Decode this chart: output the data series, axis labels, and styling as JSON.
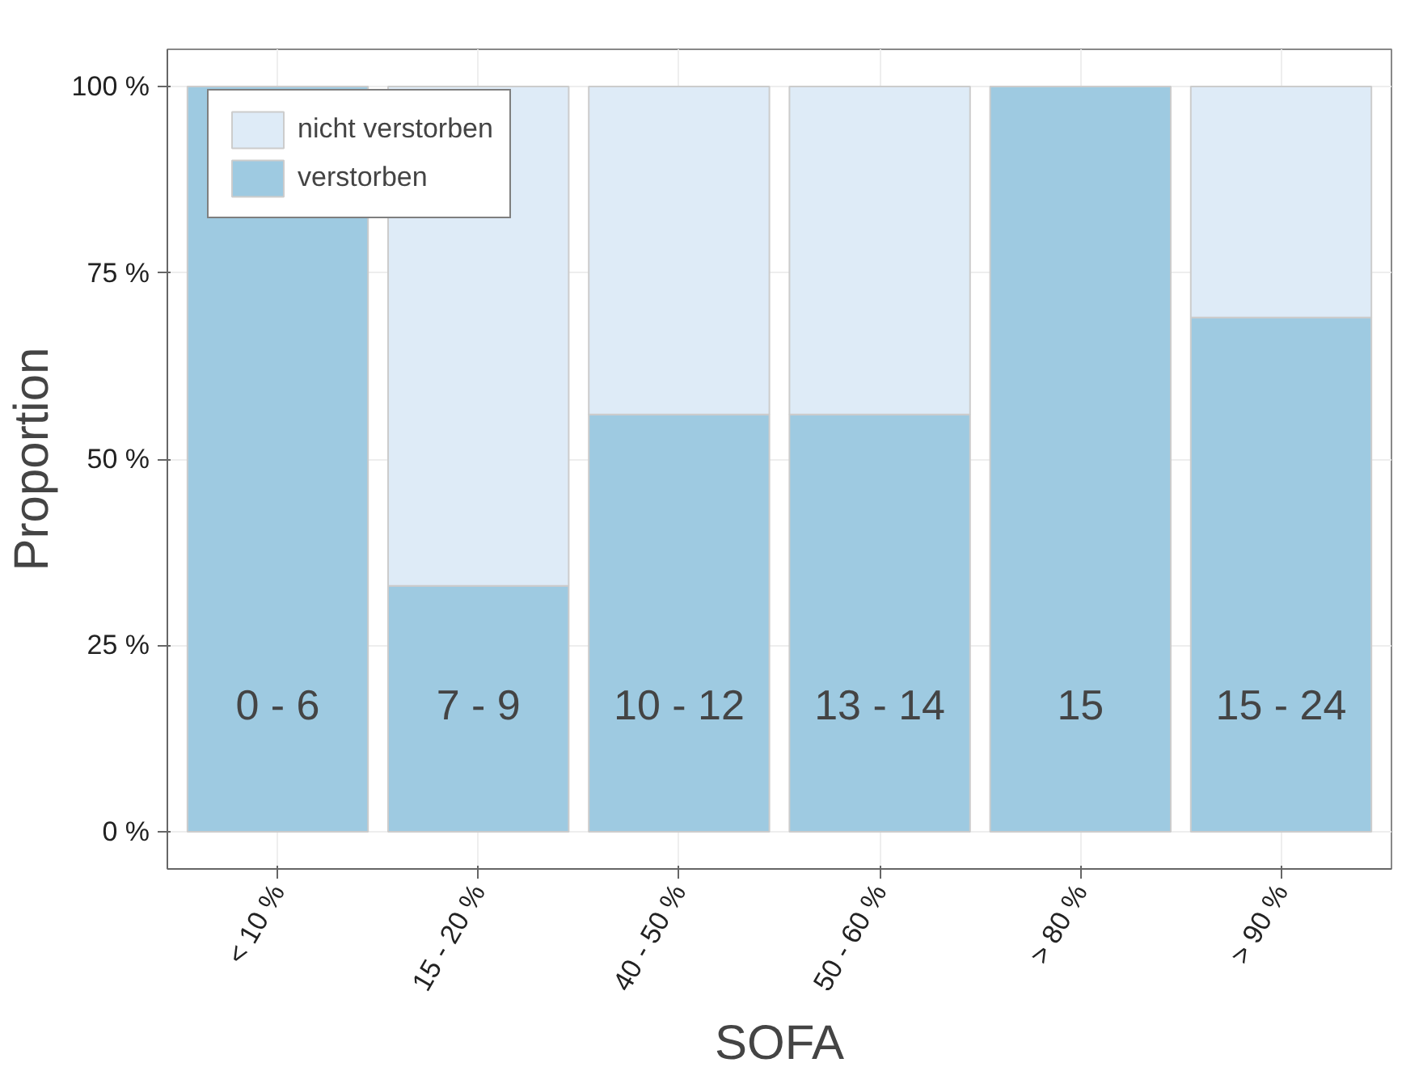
{
  "chart_data": {
    "type": "bar",
    "stacked": true,
    "xlabel": "SOFA",
    "ylabel": "Proportion",
    "categories": [
      "< 10 %",
      "15 - 20 %",
      "40 - 50 %",
      "50 - 60 %",
      "> 80 %",
      "> 90 %"
    ],
    "series": [
      {
        "name": "verstorben",
        "color": "#9ecae1",
        "values": [
          100,
          33,
          56,
          56,
          100,
          69
        ]
      },
      {
        "name": "nicht verstorben",
        "color": "#deebf7",
        "values": [
          null,
          67,
          44,
          44,
          null,
          31
        ]
      }
    ],
    "ylim": [
      -5,
      105
    ],
    "yticks": [
      {
        "value": 0,
        "label": "0 %"
      },
      {
        "value": 25,
        "label": "25 %"
      },
      {
        "value": 50,
        "label": "50 %"
      },
      {
        "value": 75,
        "label": "75 %"
      },
      {
        "value": 100,
        "label": "100 %"
      }
    ],
    "grid": true,
    "legend": "top left",
    "annotations": [
      "0 - 6",
      "7 - 9",
      "10 - 12",
      "13 - 14",
      "15",
      "15 - 24"
    ]
  }
}
